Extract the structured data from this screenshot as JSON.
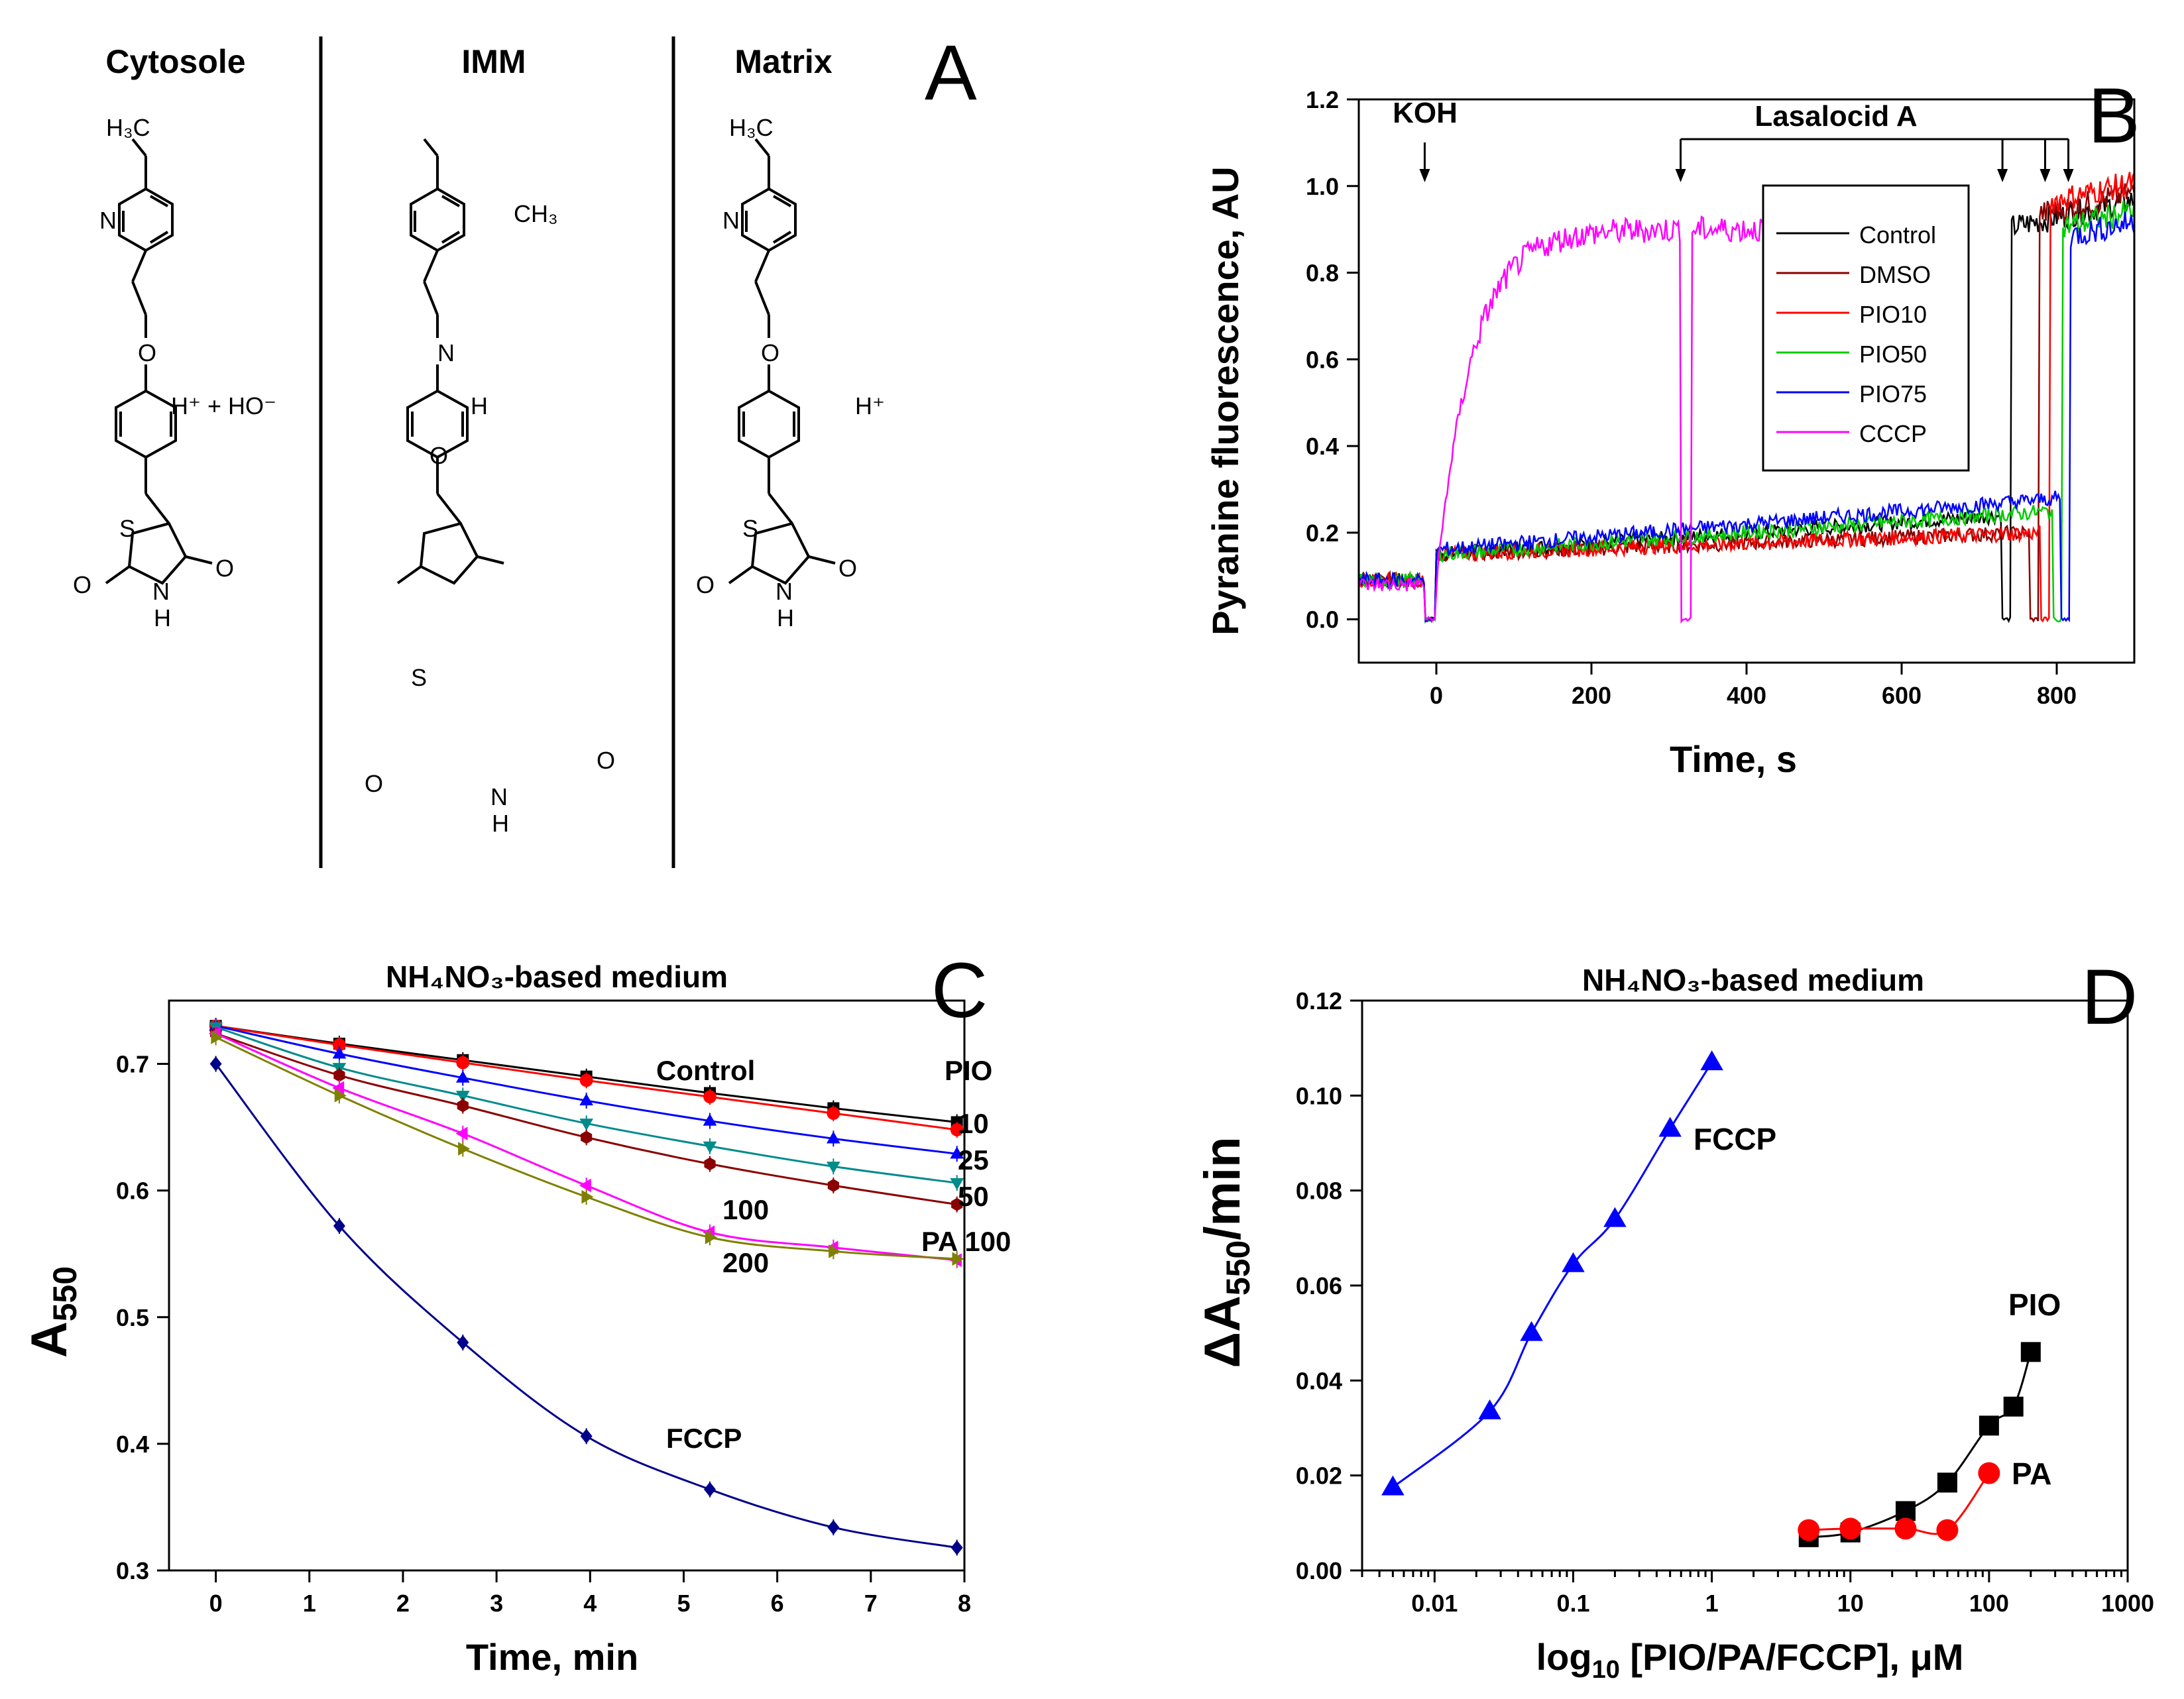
{
  "panelA": {
    "letter": "A",
    "columns": [
      "Cytosole",
      "IMM",
      "Matrix"
    ],
    "ions_cytosol": "H⁺ + HO⁻",
    "ions_imm": "H⁺",
    "ions_matrix": "H⁺",
    "atoms": {
      "methyl_left": "H₃C",
      "methyl_imm": "CH₃",
      "N": "N",
      "O": "O",
      "S": "S",
      "H": "H"
    }
  },
  "chart_data": [
    {
      "id": "B",
      "type": "line",
      "letter": "B",
      "xlabel": "Time, s",
      "ylabel": "Pyranine fluorescence, AU",
      "xlim": [
        -100,
        900
      ],
      "ylim": [
        -0.1,
        1.2
      ],
      "xticks": [
        0,
        200,
        400,
        600,
        800
      ],
      "yticks": [
        0.0,
        0.2,
        0.4,
        0.6,
        0.8,
        1.0,
        1.2
      ],
      "annotations": {
        "koh": "KOH",
        "lasalocid": "Lasalocid A"
      },
      "koh_time": -15,
      "lasalocid_times": [
        315,
        730,
        785,
        815
      ],
      "legend_position": "top-right",
      "series": [
        {
          "name": "Control",
          "color": "#000000",
          "pre": 0.09,
          "start": 0.15,
          "end": 0.24,
          "drop": 730,
          "final": 0.9
        },
        {
          "name": "DMSO",
          "color": "#8b0000",
          "pre": 0.09,
          "start": 0.15,
          "end": 0.2,
          "drop": 765,
          "final": 0.93
        },
        {
          "name": "PIO10",
          "color": "#ff0000",
          "pre": 0.09,
          "start": 0.15,
          "end": 0.2,
          "drop": 780,
          "final": 0.96
        },
        {
          "name": "PIO50",
          "color": "#00cc00",
          "pre": 0.09,
          "start": 0.15,
          "end": 0.25,
          "drop": 795,
          "final": 0.9
        },
        {
          "name": "PIO75",
          "color": "#0000ff",
          "pre": 0.09,
          "start": 0.16,
          "end": 0.28,
          "drop": 805,
          "final": 0.88
        },
        {
          "name": "CCCP",
          "color": "#ff00ff",
          "pre": 0.08,
          "plateau": 0.9,
          "tau": 45,
          "drop": 315,
          "final": 0.9
        }
      ]
    },
    {
      "id": "C",
      "type": "line",
      "letter": "C",
      "title": "NH₄NO₃-based medium",
      "xlabel": "Time, min",
      "ylabel": "A550",
      "xlim": [
        -0.5,
        8
      ],
      "ylim": [
        0.3,
        0.75
      ],
      "xticks": [
        0,
        1,
        2,
        3,
        4,
        5,
        6,
        7,
        8
      ],
      "yticks": [
        0.3,
        0.4,
        0.5,
        0.6,
        0.7
      ],
      "x": [
        0,
        1.32,
        2.64,
        3.96,
        5.28,
        6.6,
        7.92
      ],
      "series": [
        {
          "name": "Control",
          "color": "#000000",
          "marker": "square",
          "values": [
            0.73,
            0.716,
            0.703,
            0.69,
            0.677,
            0.665,
            0.654
          ]
        },
        {
          "name": "10",
          "color": "#ff0000",
          "marker": "circle",
          "values": [
            0.73,
            0.715,
            0.701,
            0.687,
            0.674,
            0.661,
            0.648
          ]
        },
        {
          "name": "25",
          "color": "#0000ff",
          "marker": "triangle",
          "values": [
            0.73,
            0.708,
            0.689,
            0.671,
            0.655,
            0.641,
            0.629
          ]
        },
        {
          "name": "50",
          "color": "#008b8b",
          "marker": "triangle-down",
          "values": [
            0.729,
            0.697,
            0.675,
            0.653,
            0.635,
            0.619,
            0.606
          ]
        },
        {
          "name": "PA 100",
          "color": "#8b0000",
          "marker": "hexagon",
          "values": [
            0.724,
            0.691,
            0.667,
            0.642,
            0.621,
            0.604,
            0.589
          ]
        },
        {
          "name": "100",
          "color": "#ff00ff",
          "marker": "triangle-left",
          "values": [
            0.724,
            0.681,
            0.645,
            0.604,
            0.567,
            0.555,
            0.545
          ]
        },
        {
          "name": "200",
          "color": "#808000",
          "marker": "triangle-right",
          "values": [
            0.721,
            0.675,
            0.633,
            0.595,
            0.563,
            0.552,
            0.546
          ]
        },
        {
          "name": "FCCP",
          "color": "#00008b",
          "marker": "diamond",
          "values": [
            0.7,
            0.572,
            0.48,
            0.406,
            0.364,
            0.334,
            0.318
          ]
        }
      ],
      "labels": {
        "control": "Control",
        "pio": "PIO",
        "l10": "10",
        "l25": "25",
        "l50": "50",
        "l100": "100",
        "pa100": "PA 100",
        "l200": "200",
        "fccp": "FCCP"
      }
    },
    {
      "id": "D",
      "type": "scatter",
      "letter": "D",
      "title": "NH₄NO₃-based medium",
      "xlabel": "log₁₀ [PIO/PA/FCCP], μM",
      "ylabel": "ΔA550/min",
      "xscale": "log",
      "xlim": [
        0.003,
        1000
      ],
      "ylim": [
        0,
        0.12
      ],
      "xticks": [
        0.01,
        0.1,
        1,
        10,
        100,
        1000
      ],
      "xtick_labels": [
        "0.01",
        "0.1",
        "1",
        "10",
        "100",
        "1000"
      ],
      "yticks": [
        0.0,
        0.02,
        0.04,
        0.06,
        0.08,
        0.1,
        0.12
      ],
      "series": [
        {
          "name": "FCCP",
          "color": "#0000ff",
          "marker": "triangle",
          "x": [
            0.005,
            0.025,
            0.05,
            0.1,
            0.2,
            0.5,
            1
          ],
          "values": [
            0.0175,
            0.0335,
            0.05,
            0.0645,
            0.074,
            0.093,
            0.107
          ]
        },
        {
          "name": "PIO",
          "color": "#000000",
          "marker": "square",
          "x": [
            5,
            10,
            25,
            50,
            100,
            150,
            200
          ],
          "values": [
            0.007,
            0.008,
            0.0125,
            0.0185,
            0.0305,
            0.0345,
            0.046
          ]
        },
        {
          "name": "PA",
          "color": "#ff0000",
          "marker": "circle",
          "x": [
            5,
            10,
            25,
            50,
            100
          ],
          "values": [
            0.0085,
            0.0088,
            0.0088,
            0.0085,
            0.0205
          ]
        }
      ]
    }
  ]
}
